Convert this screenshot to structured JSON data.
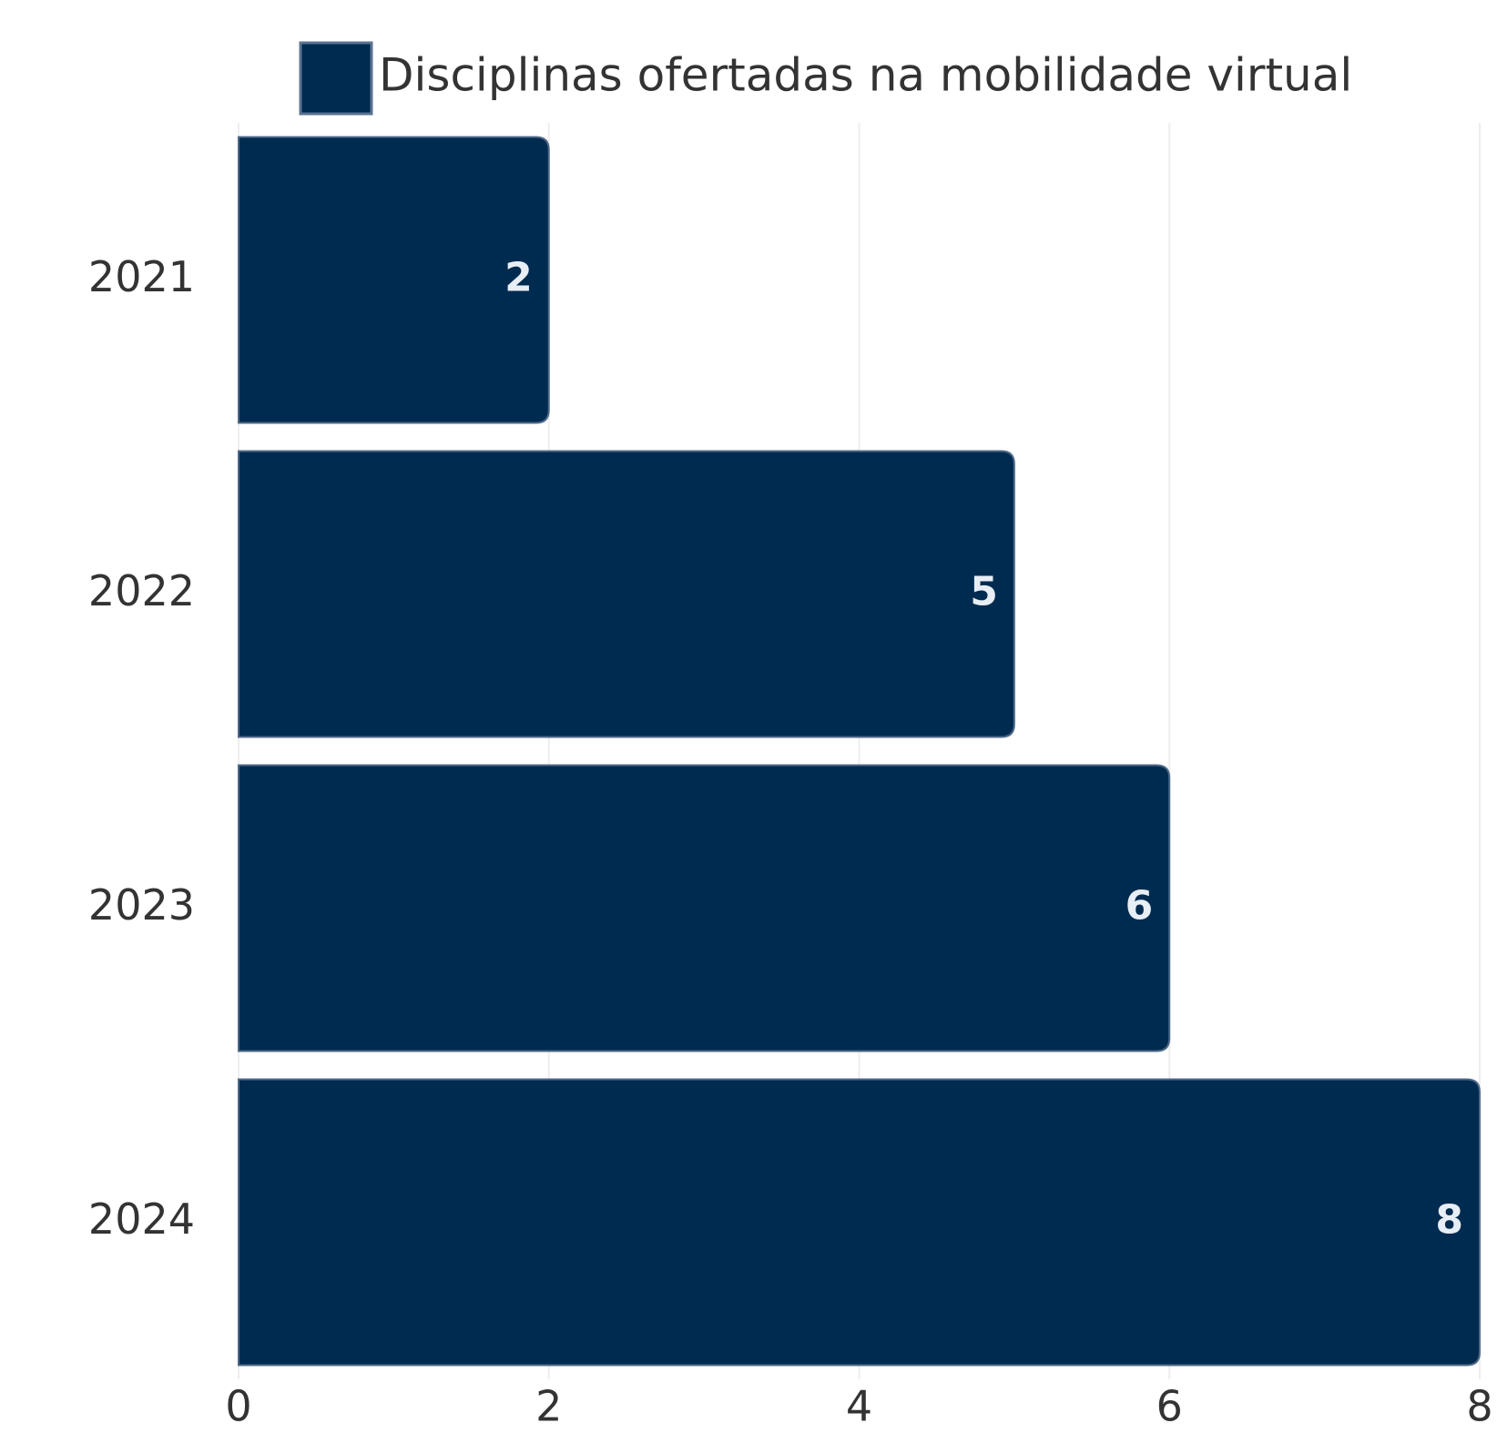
{
  "chart_data": {
    "type": "bar",
    "orientation": "horizontal",
    "categories": [
      "2021",
      "2022",
      "2023",
      "2024"
    ],
    "series": [
      {
        "name": "Disciplinas ofertadas na mobilidade virtual",
        "color": "#002b50",
        "values": [
          2,
          5,
          6,
          8
        ]
      }
    ],
    "xlim": [
      0,
      8
    ],
    "xticks": [
      0,
      2,
      4,
      6,
      8
    ],
    "grid": true,
    "legend": "top"
  }
}
